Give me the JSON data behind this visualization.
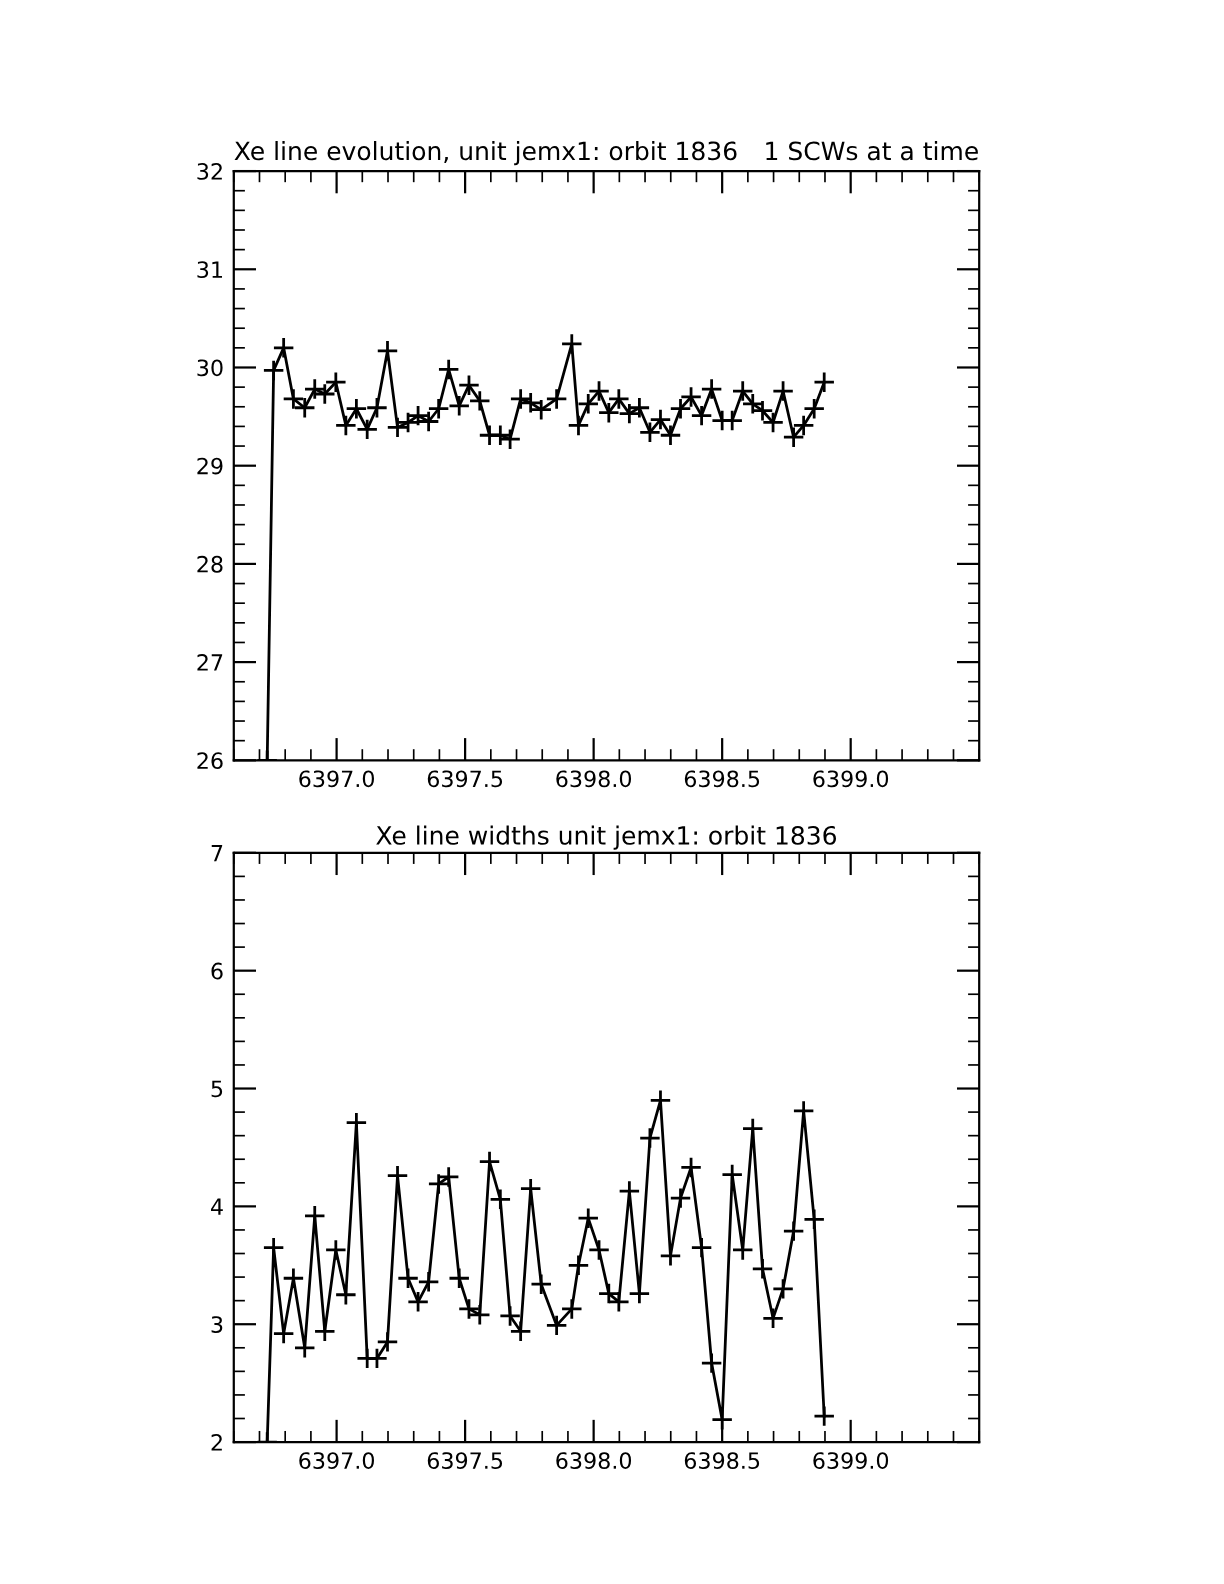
{
  "chart_data": [
    {
      "type": "line",
      "title": "Xe line evolution, unit jemx1: orbit 1836",
      "subtitle": "1 SCWs at a time",
      "marker": "cross",
      "grid": false,
      "color": "#000000",
      "x": [
        6396.73,
        6396.755,
        6396.794,
        6396.832,
        6396.876,
        6396.915,
        6396.954,
        6396.997,
        6397.036,
        6397.077,
        6397.119,
        6397.157,
        6397.198,
        6397.237,
        6397.278,
        6397.317,
        6397.358,
        6397.397,
        6397.436,
        6397.477,
        6397.515,
        6397.557,
        6397.595,
        6397.637,
        6397.675,
        6397.716,
        6397.755,
        6397.796,
        6397.856,
        6397.915,
        6397.941,
        6397.979,
        6398.021,
        6398.059,
        6398.098,
        6398.139,
        6398.178,
        6398.219,
        6398.26,
        6398.299,
        6398.338,
        6398.379,
        6398.42,
        6398.459,
        6398.5,
        6398.539,
        6398.58,
        6398.619,
        6398.657,
        6398.698,
        6398.737,
        6398.778,
        6398.817,
        6398.858,
        6398.897
      ],
      "values": [
        26.0,
        29.97,
        30.2,
        29.68,
        29.59,
        29.78,
        29.73,
        29.85,
        29.41,
        29.58,
        29.37,
        29.59,
        30.17,
        29.39,
        29.44,
        29.51,
        29.45,
        29.58,
        29.98,
        29.61,
        29.82,
        29.66,
        29.31,
        29.31,
        29.27,
        29.68,
        29.64,
        29.57,
        29.68,
        30.24,
        29.41,
        29.63,
        29.76,
        29.54,
        29.68,
        29.53,
        29.59,
        29.34,
        29.47,
        29.31,
        29.58,
        29.7,
        29.51,
        29.78,
        29.46,
        29.46,
        29.76,
        29.63,
        29.56,
        29.44,
        29.76,
        29.29,
        29.41,
        29.58,
        29.85
      ],
      "xlim": [
        6396.6,
        6399.5
      ],
      "ylim": [
        26,
        32
      ],
      "xticks": [
        {
          "value": 6397.0,
          "label": "6397.0"
        },
        {
          "value": 6397.5,
          "label": "6397.5"
        },
        {
          "value": 6398.0,
          "label": "6398.0"
        },
        {
          "value": 6398.5,
          "label": "6398.5"
        },
        {
          "value": 6399.0,
          "label": "6399.0"
        }
      ],
      "yticks": [
        26,
        27,
        28,
        29,
        30,
        31,
        32
      ]
    },
    {
      "type": "line",
      "title": "Xe line widths unit jemx1: orbit 1836",
      "marker": "cross",
      "grid": false,
      "color": "#000000",
      "x": [
        6396.73,
        6396.755,
        6396.794,
        6396.832,
        6396.876,
        6396.915,
        6396.954,
        6396.997,
        6397.036,
        6397.077,
        6397.119,
        6397.157,
        6397.198,
        6397.237,
        6397.278,
        6397.317,
        6397.358,
        6397.397,
        6397.436,
        6397.477,
        6397.515,
        6397.557,
        6397.595,
        6397.637,
        6397.675,
        6397.716,
        6397.755,
        6397.796,
        6397.856,
        6397.915,
        6397.941,
        6397.979,
        6398.021,
        6398.059,
        6398.098,
        6398.139,
        6398.178,
        6398.219,
        6398.26,
        6398.299,
        6398.338,
        6398.379,
        6398.42,
        6398.459,
        6398.5,
        6398.539,
        6398.58,
        6398.619,
        6398.657,
        6398.698,
        6398.737,
        6398.778,
        6398.817,
        6398.858,
        6398.897
      ],
      "values": [
        2.0,
        3.65,
        2.92,
        3.39,
        2.8,
        3.92,
        2.94,
        3.63,
        3.25,
        4.71,
        2.71,
        2.71,
        2.85,
        4.26,
        3.39,
        3.19,
        3.36,
        4.19,
        4.25,
        3.39,
        3.13,
        3.08,
        4.38,
        4.06,
        3.07,
        2.94,
        4.15,
        3.34,
        2.99,
        3.13,
        3.5,
        3.9,
        3.63,
        3.26,
        3.19,
        4.13,
        3.26,
        4.58,
        4.9,
        3.58,
        4.07,
        4.33,
        3.65,
        2.67,
        2.19,
        4.27,
        3.63,
        4.66,
        3.47,
        3.05,
        3.3,
        3.79,
        4.81,
        3.89,
        2.22
      ],
      "xlim": [
        6396.6,
        6399.5
      ],
      "ylim": [
        2,
        7
      ],
      "xticks": [
        {
          "value": 6397.0,
          "label": "6397.0"
        },
        {
          "value": 6397.5,
          "label": "6397.5"
        },
        {
          "value": 6398.0,
          "label": "6398.0"
        },
        {
          "value": 6398.5,
          "label": "6398.5"
        },
        {
          "value": 6399.0,
          "label": "6399.0"
        }
      ],
      "yticks": [
        2,
        3,
        4,
        5,
        6,
        7
      ]
    }
  ]
}
